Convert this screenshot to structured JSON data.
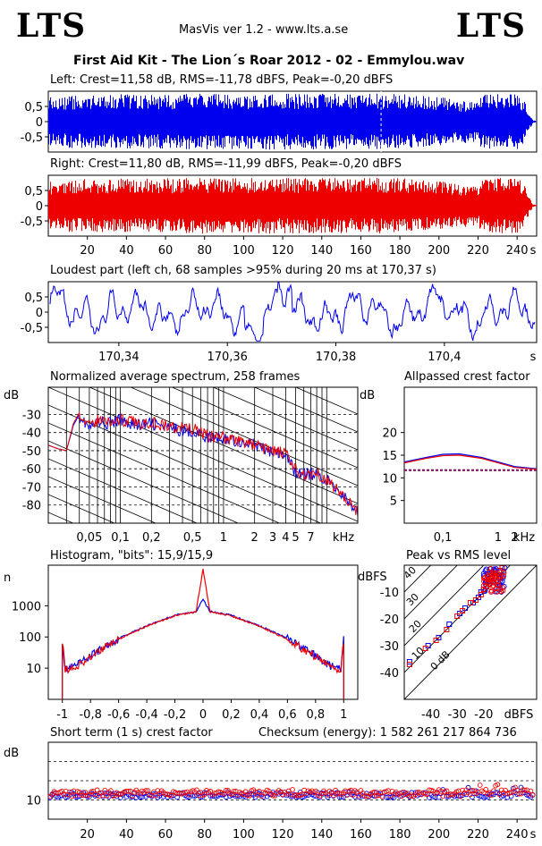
{
  "header": {
    "logo_left": "LTS",
    "logo_right": "LTS",
    "app": "MasVis ver 1.2 - www.lts.a.se",
    "title": "First Aid Kit - The Lion´s Roar 2012 - 02 - Emmylou.wav"
  },
  "colors": {
    "left": "#0000ee",
    "right": "#ee0000",
    "grid": "#000000"
  },
  "chart_data": [
    {
      "id": "left-waveform",
      "type": "area",
      "title": "Left: Crest=11,58 dB, RMS=-11,78 dBFS, Peak=-0,20 dBFS",
      "ylim": [
        -1,
        1
      ],
      "y_ticks": [
        "0,5",
        "0",
        "-0,5"
      ],
      "y_tick_values": [
        0.5,
        0,
        -0.5
      ],
      "xlim": [
        0,
        250
      ],
      "marker_time": 170.37,
      "envelope": [
        [
          0,
          0.98
        ],
        [
          2,
          0.7
        ],
        [
          5,
          0.9
        ],
        [
          20,
          0.95
        ],
        [
          40,
          0.97
        ],
        [
          60,
          0.96
        ],
        [
          80,
          0.98
        ],
        [
          100,
          0.97
        ],
        [
          120,
          0.98
        ],
        [
          140,
          0.98
        ],
        [
          160,
          0.97
        ],
        [
          170,
          0.99
        ],
        [
          180,
          0.96
        ],
        [
          195,
          0.9
        ],
        [
          200,
          0.85
        ],
        [
          220,
          0.7
        ],
        [
          221,
          0.98
        ],
        [
          240,
          0.96
        ],
        [
          243,
          0.8
        ],
        [
          246,
          0.3
        ],
        [
          248,
          0.05
        ],
        [
          250,
          0.02
        ]
      ]
    },
    {
      "id": "right-waveform",
      "type": "area",
      "title": "Right: Crest=11,80 dB, RMS=-11,99 dBFS, Peak=-0,20 dBFS",
      "ylim": [
        -1,
        1
      ],
      "y_ticks": [
        "0,5",
        "0",
        "-0,5"
      ],
      "y_tick_values": [
        0.5,
        0,
        -0.5
      ],
      "xlim": [
        0,
        250
      ],
      "x_ticks": [
        "20",
        "40",
        "60",
        "80",
        "100",
        "120",
        "140",
        "160",
        "180",
        "200",
        "220",
        "240"
      ],
      "x_tick_values": [
        20,
        40,
        60,
        80,
        100,
        120,
        140,
        160,
        180,
        200,
        220,
        240
      ],
      "x_unit": "s",
      "envelope": [
        [
          0,
          0.98
        ],
        [
          2,
          0.7
        ],
        [
          5,
          0.9
        ],
        [
          20,
          0.95
        ],
        [
          40,
          0.97
        ],
        [
          60,
          0.96
        ],
        [
          80,
          0.98
        ],
        [
          100,
          0.97
        ],
        [
          120,
          0.98
        ],
        [
          140,
          0.98
        ],
        [
          160,
          0.97
        ],
        [
          170,
          0.99
        ],
        [
          180,
          0.96
        ],
        [
          195,
          0.9
        ],
        [
          200,
          0.85
        ],
        [
          220,
          0.7
        ],
        [
          221,
          0.98
        ],
        [
          240,
          0.96
        ],
        [
          243,
          0.8
        ],
        [
          246,
          0.3
        ],
        [
          248,
          0.05
        ],
        [
          250,
          0.02
        ]
      ]
    },
    {
      "id": "loudest-part",
      "type": "line",
      "title": "Loudest part (left  ch, 68 samples >95% during 20 ms at 170,37 s)",
      "ylim": [
        -1,
        1
      ],
      "y_ticks": [
        "0,5",
        "0",
        "-0,5"
      ],
      "y_tick_values": [
        0.5,
        0,
        -0.5
      ],
      "xlim": [
        170.327,
        170.417
      ],
      "x_ticks": [
        "170,34",
        "170,36",
        "170,38",
        "170,4"
      ],
      "x_tick_values": [
        170.34,
        170.36,
        170.38,
        170.4
      ],
      "x_unit": "s"
    },
    {
      "id": "spectrum",
      "type": "line",
      "title": "Normalized average spectrum, 258 frames",
      "ylabel": "dB",
      "ylim": [
        -90,
        -15
      ],
      "y_ticks": [
        "-30",
        "-40",
        "-50",
        "-60",
        "-70",
        "-80"
      ],
      "y_tick_values": [
        -30,
        -40,
        -50,
        -60,
        -70,
        -80
      ],
      "x_scale": "log",
      "xlim": [
        0.02,
        20
      ],
      "x_ticks": [
        "0,05",
        "0,1",
        "0,2",
        "0,5",
        "1",
        "2",
        "3",
        "4",
        "5",
        "7",
        "kHz"
      ],
      "x_tick_values": [
        0.05,
        0.1,
        0.2,
        0.5,
        1,
        2,
        3,
        4,
        5,
        7
      ],
      "x_unit": "kHz",
      "series": [
        {
          "name": "",
          "color": "#0000ee",
          "x": [
            0.02,
            0.025,
            0.03,
            0.035,
            0.04,
            0.05,
            0.06,
            0.08,
            0.1,
            0.15,
            0.2,
            0.3,
            0.5,
            0.7,
            1,
            1.5,
            2,
            3,
            4,
            5,
            6,
            8,
            10,
            12,
            15,
            20
          ],
          "values": [
            -47,
            -49,
            -50,
            -36,
            -30,
            -38,
            -34,
            -35,
            -33,
            -36,
            -35,
            -38,
            -39,
            -43,
            -43,
            -45,
            -47,
            -51,
            -53,
            -62,
            -63,
            -63,
            -66,
            -70,
            -76,
            -84
          ]
        },
        {
          "name": "",
          "color": "#ee0000",
          "x": [
            0.02,
            0.025,
            0.03,
            0.035,
            0.04,
            0.05,
            0.06,
            0.08,
            0.1,
            0.15,
            0.2,
            0.3,
            0.5,
            0.7,
            1,
            1.5,
            2,
            3,
            4,
            5,
            6,
            8,
            10,
            12,
            15,
            20
          ],
          "values": [
            -47,
            -49,
            -50,
            -35,
            -29,
            -37,
            -33,
            -34,
            -33,
            -35,
            -34,
            -37,
            -38,
            -42,
            -43,
            -45,
            -47,
            -50,
            -52,
            -61,
            -63,
            -62,
            -66,
            -70,
            -76,
            -84
          ]
        }
      ]
    },
    {
      "id": "allpassed-crest",
      "type": "line",
      "title": "Allpassed crest factor",
      "ylabel": "dB",
      "ylim": [
        0,
        30
      ],
      "y_ticks": [
        "20",
        "15",
        "10",
        "5"
      ],
      "y_tick_values": [
        20,
        15,
        10,
        5
      ],
      "x_scale": "log",
      "xlim": [
        0.02,
        5
      ],
      "x_ticks": [
        "0,1",
        "1",
        "2",
        "kHz"
      ],
      "x_tick_values": [
        0.1,
        1,
        2
      ],
      "x_unit": "kHz",
      "reference": 11.7,
      "series": [
        {
          "name": "",
          "color": "#0000ee",
          "x": [
            0.02,
            0.05,
            0.1,
            0.2,
            0.5,
            1,
            2,
            5
          ],
          "values": [
            13.5,
            14.5,
            15.2,
            15.3,
            14.5,
            13.5,
            12.5,
            12
          ]
        },
        {
          "name": "",
          "color": "#ee0000",
          "x": [
            0.02,
            0.05,
            0.1,
            0.2,
            0.5,
            1,
            2,
            5
          ],
          "values": [
            13.3,
            14.3,
            14.9,
            15.0,
            14.3,
            13.3,
            12.3,
            11.9
          ]
        }
      ]
    },
    {
      "id": "histogram",
      "type": "line",
      "title": "Histogram, \"bits\": 15,9/15,9",
      "ylabel": "n",
      "y_scale": "log",
      "ylim": [
        1,
        20000
      ],
      "y_ticks": [
        "1000",
        "100",
        "10"
      ],
      "y_tick_values": [
        1000,
        100,
        10
      ],
      "xlim": [
        -1.1,
        1.1
      ],
      "x_ticks": [
        "-1",
        "-0,8",
        "-0,6",
        "-0,4",
        "-0,2",
        "0",
        "0,2",
        "0,4",
        "0,6",
        "0,8",
        "1"
      ],
      "x_tick_values": [
        -1,
        -0.8,
        -0.6,
        -0.4,
        -0.2,
        0,
        0.2,
        0.4,
        0.6,
        0.8,
        1
      ],
      "series": [
        {
          "name": "",
          "color": "#0000ee",
          "x": [
            -1,
            -0.98,
            -0.9,
            -0.8,
            -0.6,
            -0.4,
            -0.2,
            -0.05,
            0,
            0.05,
            0.2,
            0.4,
            0.6,
            0.8,
            0.9,
            0.98,
            1
          ],
          "values": [
            80,
            9,
            12,
            25,
            90,
            230,
            500,
            650,
            1600,
            650,
            500,
            230,
            90,
            25,
            12,
            9,
            80
          ]
        },
        {
          "name": "",
          "color": "#ee0000",
          "x": [
            -1,
            -0.98,
            -0.9,
            -0.8,
            -0.6,
            -0.4,
            -0.2,
            -0.05,
            0,
            0.05,
            0.2,
            0.4,
            0.6,
            0.8,
            0.9,
            0.98,
            1
          ],
          "values": [
            80,
            8,
            11,
            23,
            85,
            220,
            480,
            640,
            15000,
            640,
            480,
            220,
            85,
            23,
            11,
            8,
            80
          ]
        }
      ]
    },
    {
      "id": "peak-vs-rms",
      "type": "scatter",
      "title": "Peak vs RMS level",
      "ylabel": "dBFS",
      "xlabel": "dBFS",
      "xlim": [
        -50,
        0
      ],
      "ylim": [
        -50,
        0
      ],
      "y_ticks": [
        "-10",
        "-20",
        "-30",
        "-40"
      ],
      "y_tick_values": [
        -10,
        -20,
        -30,
        -40
      ],
      "x_ticks": [
        "-40",
        "-30",
        "-20"
      ],
      "x_tick_values": [
        -40,
        -30,
        -20
      ],
      "diagonal_labels": [
        "40",
        "30",
        "20",
        "10",
        "0 dB"
      ],
      "diagonal_offsets": [
        40,
        30,
        20,
        10,
        0
      ],
      "series": [
        {
          "name": "",
          "color": "#0000ee",
          "x": [
            -48,
            -41,
            -37,
            -33,
            -29,
            -27,
            -24,
            -22,
            -21,
            -20,
            -19,
            -18,
            -17,
            -16,
            -15,
            -14,
            -13
          ],
          "y": [
            -36,
            -30,
            -27,
            -22,
            -18,
            -16,
            -14,
            -12,
            -10,
            -9,
            -8,
            -6,
            -5,
            -4,
            -3,
            -2,
            -1
          ]
        },
        {
          "name": "",
          "color": "#ee0000",
          "x": [
            -48,
            -42,
            -38,
            -34,
            -30,
            -28,
            -25,
            -23,
            -21,
            -20,
            -19,
            -18,
            -17,
            -16,
            -15,
            -14,
            -13
          ],
          "y": [
            -37,
            -31,
            -28,
            -24,
            -19,
            -17,
            -14,
            -13,
            -11,
            -9,
            -8,
            -7,
            -5,
            -4,
            -3,
            -2,
            -1
          ]
        }
      ]
    },
    {
      "id": "short-term-crest",
      "type": "scatter",
      "title": "Short term (1 s) crest factor",
      "subtitle": "Checksum (energy):  1 582 261 217 864 736",
      "ylabel": "dB",
      "ylim": [
        5,
        25
      ],
      "y_ticks": [
        "10"
      ],
      "y_tick_values": [
        10
      ],
      "reference_lines": [
        10,
        15,
        20
      ],
      "xlim": [
        0,
        250
      ],
      "x_ticks": [
        "20",
        "40",
        "60",
        "80",
        "100",
        "120",
        "140",
        "160",
        "180",
        "200",
        "220",
        "240"
      ],
      "x_tick_values": [
        20,
        40,
        60,
        80,
        100,
        120,
        140,
        160,
        180,
        200,
        220,
        240
      ],
      "x_unit": "s",
      "series": [
        {
          "name": "",
          "color": "#0000ee",
          "mean": 11.3,
          "spread": 0.7
        },
        {
          "name": "",
          "color": "#ee0000",
          "mean": 11.8,
          "spread": 0.9
        }
      ]
    }
  ]
}
